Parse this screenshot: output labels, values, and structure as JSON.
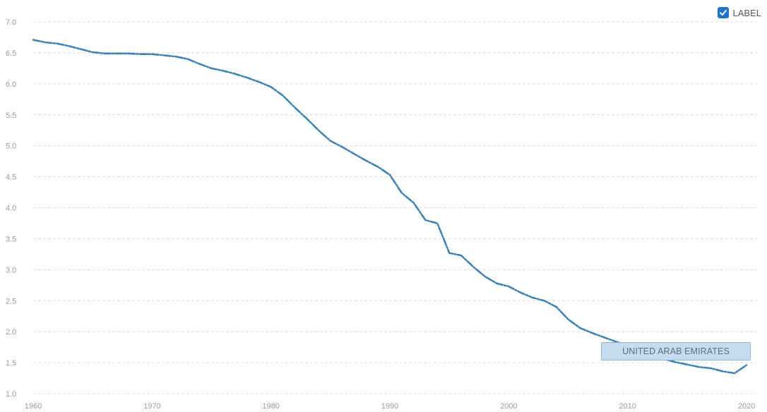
{
  "label_toggle": {
    "text": "LABEL",
    "checked": true
  },
  "colors": {
    "series": "#3d82b5",
    "checkbox": "#1f74c9",
    "tag_bg": "#c6dcee"
  },
  "chart_data": {
    "type": "line",
    "title": "",
    "xlabel": "",
    "ylabel": "",
    "xlim": [
      1960,
      2021
    ],
    "ylim": [
      1.0,
      7.0
    ],
    "yticks": [
      "1.0",
      "1.5",
      "2.0",
      "2.5",
      "3.0",
      "3.5",
      "4.0",
      "4.5",
      "5.0",
      "5.5",
      "6.0",
      "6.5",
      "7.0"
    ],
    "xticks": [
      "1960",
      "1970",
      "1980",
      "1990",
      "2000",
      "2010",
      "2020"
    ],
    "grid": true,
    "legend": "none",
    "series": [
      {
        "name": "UNITED ARAB EMIRATES",
        "x": [
          1960,
          1961,
          1962,
          1963,
          1964,
          1965,
          1966,
          1967,
          1968,
          1969,
          1970,
          1971,
          1972,
          1973,
          1974,
          1975,
          1976,
          1977,
          1978,
          1979,
          1980,
          1981,
          1982,
          1983,
          1984,
          1985,
          1986,
          1987,
          1988,
          1989,
          1990,
          1991,
          1992,
          1993,
          1994,
          1995,
          1996,
          1997,
          1998,
          1999,
          2000,
          2001,
          2002,
          2003,
          2004,
          2005,
          2006,
          2007,
          2008,
          2009,
          2010,
          2011,
          2012,
          2013,
          2014,
          2015,
          2016,
          2017,
          2018,
          2019,
          2020
        ],
        "values": [
          6.71,
          6.67,
          6.65,
          6.61,
          6.56,
          6.51,
          6.49,
          6.49,
          6.49,
          6.48,
          6.48,
          6.46,
          6.44,
          6.4,
          6.32,
          6.25,
          6.21,
          6.16,
          6.1,
          6.03,
          5.95,
          5.81,
          5.62,
          5.44,
          5.25,
          5.08,
          4.98,
          4.87,
          4.76,
          4.66,
          4.53,
          4.24,
          4.08,
          3.8,
          3.75,
          3.27,
          3.23,
          3.05,
          2.89,
          2.78,
          2.73,
          2.63,
          2.55,
          2.5,
          2.4,
          2.2,
          2.06,
          1.98,
          1.91,
          1.84,
          1.77,
          1.69,
          1.62,
          1.56,
          1.51,
          1.47,
          1.43,
          1.41,
          1.36,
          1.33,
          1.46
        ]
      }
    ],
    "annotation": {
      "text": "UNITED ARAB EMIRATES"
    }
  }
}
